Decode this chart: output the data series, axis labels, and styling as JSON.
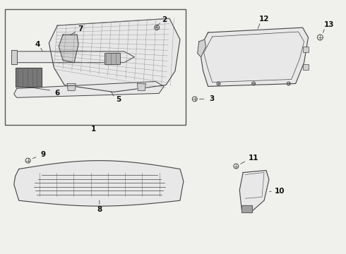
{
  "bg_color": "#f0f0ec",
  "line_color": "#444444",
  "fill_light": "#e8e8e8",
  "fill_mid": "#d0d0d0",
  "fill_dark": "#a0a0a0"
}
